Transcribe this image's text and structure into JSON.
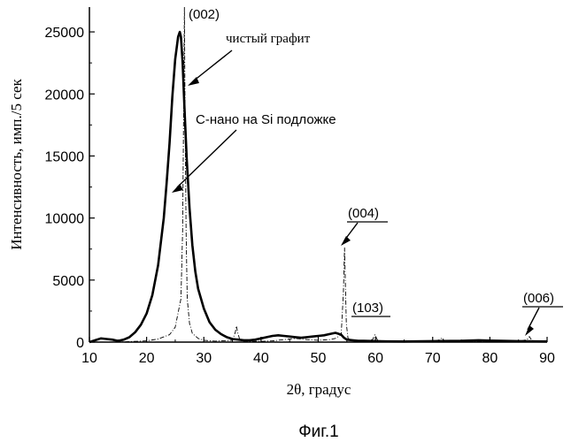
{
  "chart_data": {
    "type": "line",
    "xlabel": "2θ, градус",
    "ylabel": "Интенсивность, имп./5 сек",
    "xlim": [
      10,
      90
    ],
    "ylim": [
      0,
      27000
    ],
    "x_ticks": [
      10,
      20,
      30,
      40,
      50,
      60,
      70,
      80,
      90
    ],
    "y_ticks": [
      0,
      5000,
      10000,
      15000,
      20000,
      25000
    ],
    "grid": false,
    "legend": "none",
    "caption": "Фиг.1",
    "series": [
      {
        "name": "C-нано на Si подложке",
        "style": "solid-thick",
        "x": [
          10,
          11,
          12,
          13,
          14,
          15,
          16,
          17,
          18,
          19,
          20,
          21,
          22,
          23,
          23.5,
          24,
          24.5,
          25,
          25.5,
          25.8,
          26,
          26.3,
          26.6,
          27,
          27.5,
          28,
          28.5,
          29,
          30,
          31,
          32,
          33,
          34,
          35,
          36,
          37,
          38,
          39,
          40,
          41,
          42,
          43,
          44,
          45,
          46,
          47,
          48,
          49,
          50,
          51,
          52,
          53,
          54,
          54.5,
          55,
          56,
          57,
          58,
          60,
          62,
          65,
          70,
          75,
          78,
          80,
          82,
          85,
          88,
          90
        ],
        "y": [
          0,
          150,
          300,
          250,
          200,
          100,
          200,
          400,
          800,
          1400,
          2300,
          3800,
          6200,
          10000,
          12800,
          16000,
          19800,
          22800,
          24600,
          25000,
          24600,
          22500,
          19000,
          14800,
          10800,
          7800,
          5700,
          4300,
          2700,
          1600,
          1000,
          650,
          400,
          250,
          200,
          150,
          150,
          200,
          300,
          400,
          500,
          550,
          500,
          450,
          400,
          350,
          400,
          450,
          500,
          550,
          650,
          750,
          600,
          350,
          200,
          150,
          100,
          100,
          80,
          60,
          50,
          80,
          100,
          150,
          120,
          100,
          80,
          60,
          50
        ]
      },
      {
        "name": "чистый графит",
        "style": "dash-dot-thin",
        "x": [
          10,
          15,
          20,
          22,
          24,
          25,
          26,
          26.3,
          26.5,
          26.6,
          26.7,
          26.9,
          27.1,
          27.5,
          28,
          29,
          30,
          32,
          35,
          35.5,
          35.7,
          35.9,
          36.3,
          37,
          40,
          42,
          44,
          46,
          48,
          50,
          52,
          53,
          54,
          54.4,
          54.6,
          54.7,
          54.9,
          55.2,
          56,
          58,
          59.5,
          59.9,
          60.3,
          61,
          65,
          70,
          71.3,
          71.6,
          72,
          75,
          80,
          85,
          86.5,
          86.9,
          87.3,
          88,
          90
        ],
        "y": [
          0,
          0,
          100,
          250,
          600,
          1200,
          3500,
          9000,
          20000,
          27000,
          20000,
          9000,
          3500,
          1500,
          700,
          300,
          150,
          80,
          150,
          800,
          1300,
          800,
          150,
          80,
          60,
          100,
          200,
          300,
          200,
          150,
          200,
          300,
          600,
          4000,
          7600,
          5500,
          1500,
          300,
          100,
          80,
          200,
          600,
          200,
          80,
          60,
          60,
          200,
          350,
          120,
          60,
          50,
          50,
          200,
          450,
          150,
          50,
          40
        ]
      }
    ],
    "annotations": {
      "peak_002": "(002)",
      "pure_graphite": "чистый графит",
      "cnano_si": "С-нано на Si подложке",
      "peak_004": "(004)",
      "peak_103": "(103)",
      "peak_006": "(006)"
    }
  }
}
